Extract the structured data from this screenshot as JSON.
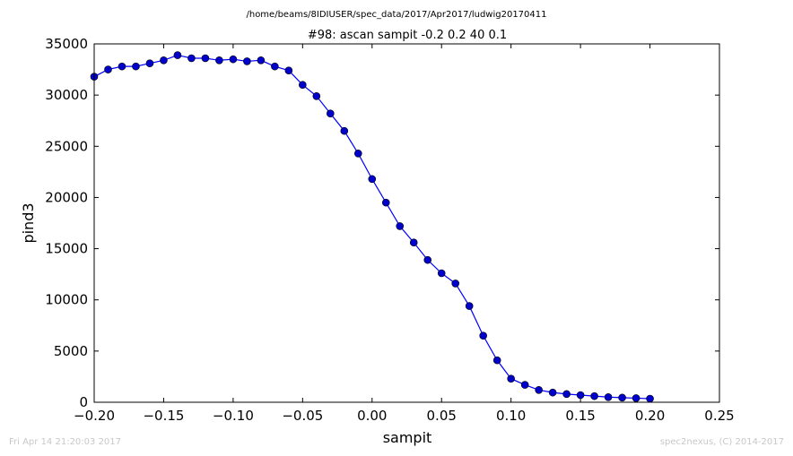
{
  "page": {
    "supertitle": "/home/beams/8IDIUSER/spec_data/2017/Apr2017/ludwig20170411",
    "footer_left": "Fri Apr 14 21:20:03 2017",
    "footer_right": "spec2nexus, (C) 2014-2017"
  },
  "colors": {
    "line": "#0000ff",
    "marker": "#0000cc",
    "footer_text": "#c8c8c8"
  },
  "chart_data": {
    "type": "line",
    "title": "#98: ascan  sampit -0.2 0.2  40 0.1",
    "xlabel": "sampit",
    "ylabel": "pind3",
    "xlim": [
      -0.2,
      0.25
    ],
    "ylim": [
      0,
      35000
    ],
    "xticks": [
      -0.2,
      -0.15,
      -0.1,
      -0.05,
      0.0,
      0.05,
      0.1,
      0.15,
      0.2,
      0.25
    ],
    "xtick_labels": [
      "−0.20",
      "−0.15",
      "−0.10",
      "−0.05",
      "0.00",
      "0.05",
      "0.10",
      "0.15",
      "0.20",
      "0.25"
    ],
    "yticks": [
      0,
      5000,
      10000,
      15000,
      20000,
      25000,
      30000,
      35000
    ],
    "ytick_labels": [
      "0",
      "5000",
      "10000",
      "15000",
      "20000",
      "25000",
      "30000",
      "35000"
    ],
    "grid": false,
    "legend": "none",
    "series": [
      {
        "x": [
          -0.2,
          -0.19,
          -0.18,
          -0.17,
          -0.16,
          -0.15,
          -0.14,
          -0.13,
          -0.12,
          -0.11,
          -0.1,
          -0.09,
          -0.08,
          -0.07,
          -0.06,
          -0.05,
          -0.04,
          -0.03,
          -0.02,
          -0.01,
          0.0,
          0.01,
          0.02,
          0.03,
          0.04,
          0.05,
          0.06,
          0.07,
          0.08,
          0.09,
          0.1,
          0.11,
          0.12,
          0.13,
          0.14,
          0.15,
          0.16,
          0.17,
          0.18,
          0.19,
          0.2
        ],
        "y": [
          31800,
          32500,
          32800,
          32800,
          33100,
          33400,
          33900,
          33600,
          33600,
          33400,
          33500,
          33300,
          33400,
          32800,
          32400,
          31000,
          29900,
          28200,
          26500,
          24300,
          21800,
          19500,
          17200,
          15600,
          13900,
          12600,
          11600,
          9400,
          6500,
          4100,
          2300,
          1700,
          1200,
          950,
          800,
          700,
          600,
          500,
          450,
          400,
          350
        ]
      }
    ]
  }
}
